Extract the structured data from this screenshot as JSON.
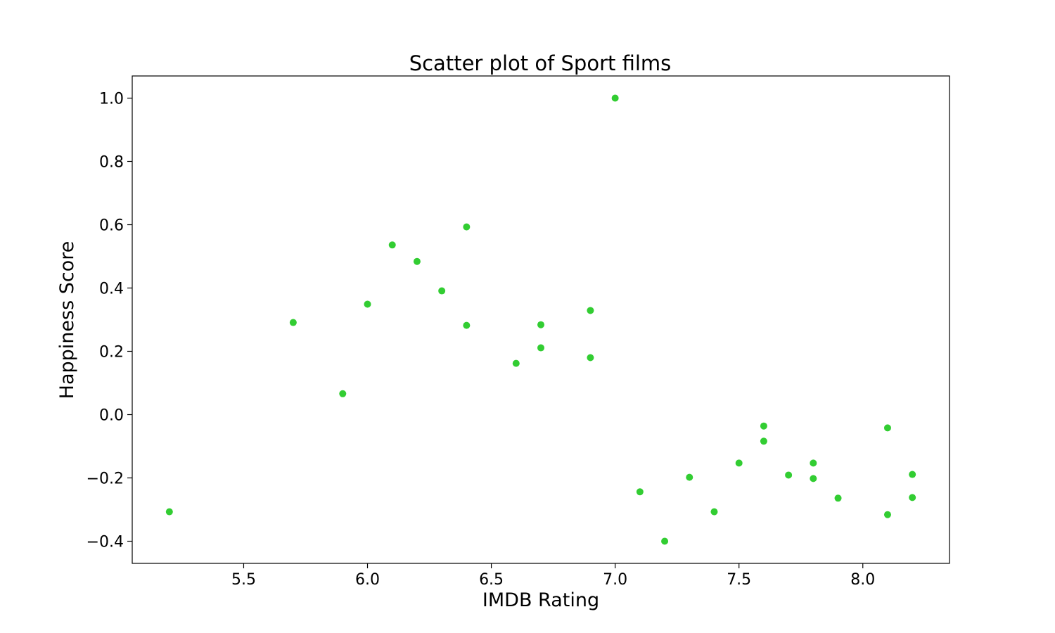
{
  "chart_data": {
    "type": "scatter",
    "title": "Scatter plot of Sport films",
    "xlabel": "IMDB Rating",
    "ylabel": "Happiness Score",
    "xlim": [
      5.05,
      8.35
    ],
    "ylim": [
      -0.47,
      1.07
    ],
    "xticks": [
      5.5,
      6.0,
      6.5,
      7.0,
      7.5,
      8.0
    ],
    "xtick_labels": [
      "5.5",
      "6.0",
      "6.5",
      "7.0",
      "7.5",
      "8.0"
    ],
    "yticks": [
      1.0,
      0.8,
      0.6,
      0.4,
      0.2,
      0.0,
      -0.2,
      -0.4
    ],
    "ytick_labels": [
      "1.0",
      "0.8",
      "0.6",
      "0.4",
      "0.2",
      "0.0",
      "−0.2",
      "−0.4"
    ],
    "grid": false,
    "marker_color": "#32cd32",
    "points": [
      {
        "x": 5.2,
        "y": -0.307
      },
      {
        "x": 5.7,
        "y": 0.291
      },
      {
        "x": 5.9,
        "y": 0.066
      },
      {
        "x": 6.0,
        "y": 0.349
      },
      {
        "x": 6.1,
        "y": 0.536
      },
      {
        "x": 6.2,
        "y": 0.484
      },
      {
        "x": 6.3,
        "y": 0.391
      },
      {
        "x": 6.4,
        "y": 0.593
      },
      {
        "x": 6.4,
        "y": 0.282
      },
      {
        "x": 6.6,
        "y": 0.162
      },
      {
        "x": 6.7,
        "y": 0.284
      },
      {
        "x": 6.7,
        "y": 0.211
      },
      {
        "x": 6.9,
        "y": 0.329
      },
      {
        "x": 6.9,
        "y": 0.18
      },
      {
        "x": 7.0,
        "y": 1.0
      },
      {
        "x": 7.1,
        "y": -0.244
      },
      {
        "x": 7.2,
        "y": -0.4
      },
      {
        "x": 7.3,
        "y": -0.198
      },
      {
        "x": 7.4,
        "y": -0.307
      },
      {
        "x": 7.5,
        "y": -0.153
      },
      {
        "x": 7.6,
        "y": -0.036
      },
      {
        "x": 7.6,
        "y": -0.084
      },
      {
        "x": 7.7,
        "y": -0.191
      },
      {
        "x": 7.8,
        "y": -0.153
      },
      {
        "x": 7.8,
        "y": -0.202
      },
      {
        "x": 7.9,
        "y": -0.264
      },
      {
        "x": 8.1,
        "y": -0.042
      },
      {
        "x": 8.1,
        "y": -0.316
      },
      {
        "x": 8.2,
        "y": -0.189
      },
      {
        "x": 8.2,
        "y": -0.262
      }
    ]
  }
}
